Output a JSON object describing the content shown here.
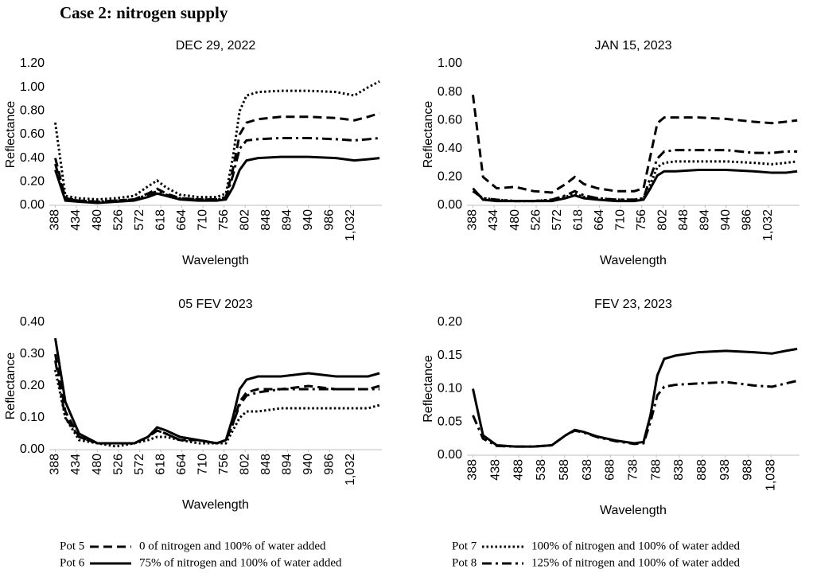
{
  "heading": "Case 2: nitrogen supply",
  "legend": [
    {
      "name": "Pot 5",
      "label": "0 of nitrogen and 100% of water added",
      "dash": "dashed",
      "color": "#000000"
    },
    {
      "name": "Pot 6",
      "label": "75% of nitrogen and 100% of water added",
      "dash": "solid",
      "color": "#000000"
    },
    {
      "name": "Pot 7",
      "label": "100% of nitrogen and 100% of water added",
      "dash": "dotted",
      "color": "#000000"
    },
    {
      "name": "Pot 8",
      "label": "125% of nitrogen and 100% of water added",
      "dash": "dashdot",
      "color": "#000000"
    }
  ],
  "chart_data": [
    {
      "type": "line",
      "title": "DEC 29, 2022",
      "x_label": "Wavelength",
      "y_label": "Reflectance",
      "xlim": [
        375,
        1100
      ],
      "xticks": [
        388,
        434,
        480,
        526,
        572,
        618,
        664,
        710,
        756,
        802,
        848,
        894,
        940,
        986,
        {
          "value": 1032,
          "label": "1,032"
        }
      ],
      "ylim": [
        0,
        1.2
      ],
      "yticks": [
        {
          "value": 0,
          "label": "0.00"
        },
        {
          "value": 0.2,
          "label": "0.20"
        },
        {
          "value": 0.4,
          "label": "0.40"
        },
        {
          "value": 0.6,
          "label": "0.60"
        },
        {
          "value": 0.8,
          "label": "0.80"
        },
        {
          "value": 1,
          "label": "1.00"
        },
        {
          "value": 1.2,
          "label": "1.20"
        }
      ],
      "x": [
        388,
        410,
        440,
        480,
        520,
        560,
        590,
        610,
        630,
        660,
        700,
        740,
        760,
        775,
        790,
        805,
        830,
        880,
        940,
        1000,
        1040,
        1070,
        1095
      ],
      "series": [
        {
          "name": "Pot 5",
          "dash": "dashed",
          "color": "#000000",
          "values": [
            0.4,
            0.06,
            0.04,
            0.03,
            0.04,
            0.05,
            0.1,
            0.14,
            0.1,
            0.06,
            0.05,
            0.05,
            0.07,
            0.3,
            0.6,
            0.7,
            0.73,
            0.75,
            0.75,
            0.74,
            0.72,
            0.75,
            0.78
          ]
        },
        {
          "name": "Pot 6",
          "dash": "solid",
          "color": "#000000",
          "values": [
            0.3,
            0.04,
            0.03,
            0.02,
            0.03,
            0.04,
            0.07,
            0.1,
            0.08,
            0.05,
            0.04,
            0.04,
            0.05,
            0.15,
            0.3,
            0.38,
            0.4,
            0.41,
            0.41,
            0.4,
            0.38,
            0.39,
            0.4
          ]
        },
        {
          "name": "Pot 7",
          "dash": "dotted",
          "color": "#000000",
          "values": [
            0.7,
            0.08,
            0.06,
            0.05,
            0.06,
            0.08,
            0.16,
            0.21,
            0.15,
            0.09,
            0.07,
            0.07,
            0.1,
            0.4,
            0.8,
            0.93,
            0.96,
            0.97,
            0.97,
            0.96,
            0.93,
            1.0,
            1.05
          ]
        },
        {
          "name": "Pot 8",
          "dash": "dashdot",
          "color": "#000000",
          "values": [
            0.35,
            0.05,
            0.04,
            0.03,
            0.04,
            0.05,
            0.09,
            0.12,
            0.09,
            0.06,
            0.05,
            0.05,
            0.06,
            0.25,
            0.48,
            0.55,
            0.56,
            0.57,
            0.57,
            0.56,
            0.55,
            0.56,
            0.57
          ]
        }
      ]
    },
    {
      "type": "line",
      "title": "JAN 15, 2023",
      "x_label": "Wavelength",
      "y_label": "Reflectance",
      "xlim": [
        375,
        1100
      ],
      "xticks": [
        388,
        434,
        480,
        526,
        572,
        618,
        664,
        710,
        756,
        802,
        848,
        894,
        940,
        986,
        {
          "value": 1032,
          "label": "1,032"
        }
      ],
      "ylim": [
        0,
        1
      ],
      "yticks": [
        {
          "value": 0,
          "label": "0.00"
        },
        {
          "value": 0.2,
          "label": "0.20"
        },
        {
          "value": 0.4,
          "label": "0.40"
        },
        {
          "value": 0.6,
          "label": "0.60"
        },
        {
          "value": 0.8,
          "label": "0.80"
        },
        {
          "value": 1,
          "label": "1.00"
        }
      ],
      "x": [
        388,
        410,
        440,
        480,
        520,
        560,
        590,
        610,
        630,
        660,
        700,
        740,
        760,
        775,
        790,
        805,
        830,
        880,
        940,
        1000,
        1040,
        1070,
        1095
      ],
      "series": [
        {
          "name": "Pot 5",
          "dash": "dashed",
          "color": "#000000",
          "values": [
            0.78,
            0.2,
            0.12,
            0.13,
            0.1,
            0.09,
            0.15,
            0.2,
            0.15,
            0.12,
            0.1,
            0.1,
            0.12,
            0.35,
            0.58,
            0.62,
            0.62,
            0.62,
            0.61,
            0.59,
            0.58,
            0.59,
            0.6
          ]
        },
        {
          "name": "Pot 6",
          "dash": "solid",
          "color": "#000000",
          "values": [
            0.12,
            0.04,
            0.03,
            0.03,
            0.03,
            0.03,
            0.05,
            0.07,
            0.05,
            0.04,
            0.03,
            0.03,
            0.04,
            0.12,
            0.21,
            0.24,
            0.24,
            0.25,
            0.25,
            0.24,
            0.23,
            0.23,
            0.24
          ]
        },
        {
          "name": "Pot 7",
          "dash": "dotted",
          "color": "#000000",
          "values": [
            0.1,
            0.05,
            0.04,
            0.03,
            0.03,
            0.04,
            0.06,
            0.08,
            0.06,
            0.05,
            0.04,
            0.04,
            0.05,
            0.15,
            0.27,
            0.3,
            0.31,
            0.31,
            0.31,
            0.3,
            0.29,
            0.3,
            0.31
          ]
        },
        {
          "name": "Pot 8",
          "dash": "dashdot",
          "color": "#000000",
          "values": [
            0.1,
            0.05,
            0.04,
            0.03,
            0.03,
            0.04,
            0.07,
            0.1,
            0.07,
            0.05,
            0.04,
            0.04,
            0.05,
            0.2,
            0.33,
            0.38,
            0.39,
            0.39,
            0.39,
            0.37,
            0.37,
            0.38,
            0.38
          ]
        }
      ]
    },
    {
      "type": "line",
      "title": "05 FEV 2023",
      "x_label": "Wavelength",
      "y_label": "Reflectance",
      "xlim": [
        375,
        1100
      ],
      "xticks": [
        388,
        434,
        480,
        526,
        572,
        618,
        664,
        710,
        756,
        802,
        848,
        894,
        940,
        986,
        {
          "value": 1032,
          "label": "1,032"
        }
      ],
      "ylim": [
        0,
        0.4
      ],
      "yticks": [
        {
          "value": 0,
          "label": "0.00"
        },
        {
          "value": 0.1,
          "label": "0.10"
        },
        {
          "value": 0.2,
          "label": "0.20"
        },
        {
          "value": 0.3,
          "label": "0.30"
        },
        {
          "value": 0.4,
          "label": "0.40"
        }
      ],
      "x": [
        388,
        410,
        440,
        480,
        520,
        560,
        590,
        610,
        630,
        660,
        700,
        740,
        760,
        775,
        790,
        805,
        830,
        880,
        940,
        1000,
        1040,
        1070,
        1095
      ],
      "series": [
        {
          "name": "Pot 5",
          "dash": "dashed",
          "color": "#000000",
          "values": [
            0.3,
            0.12,
            0.04,
            0.02,
            0.02,
            0.02,
            0.04,
            0.06,
            0.05,
            0.03,
            0.03,
            0.02,
            0.03,
            0.08,
            0.15,
            0.18,
            0.19,
            0.19,
            0.2,
            0.19,
            0.19,
            0.19,
            0.2
          ]
        },
        {
          "name": "Pot 6",
          "dash": "solid",
          "color": "#000000",
          "values": [
            0.35,
            0.15,
            0.05,
            0.02,
            0.02,
            0.02,
            0.04,
            0.07,
            0.06,
            0.04,
            0.03,
            0.02,
            0.03,
            0.1,
            0.19,
            0.22,
            0.23,
            0.23,
            0.24,
            0.23,
            0.23,
            0.23,
            0.24
          ]
        },
        {
          "name": "Pot 7",
          "dash": "dotted",
          "color": "#000000",
          "values": [
            0.25,
            0.1,
            0.03,
            0.02,
            0.01,
            0.02,
            0.03,
            0.04,
            0.04,
            0.03,
            0.02,
            0.02,
            0.02,
            0.06,
            0.1,
            0.12,
            0.12,
            0.13,
            0.13,
            0.13,
            0.13,
            0.13,
            0.14
          ]
        },
        {
          "name": "Pot 8",
          "dash": "dashdot",
          "color": "#000000",
          "values": [
            0.28,
            0.1,
            0.04,
            0.02,
            0.02,
            0.02,
            0.04,
            0.06,
            0.05,
            0.03,
            0.03,
            0.02,
            0.03,
            0.08,
            0.14,
            0.17,
            0.18,
            0.19,
            0.19,
            0.19,
            0.19,
            0.19,
            0.19
          ]
        }
      ]
    },
    {
      "type": "line",
      "title": "FEV 23, 2023",
      "x_label": "Wavelength",
      "y_label": "Reflectance",
      "xlim": [
        375,
        1100
      ],
      "xticks": [
        388,
        438,
        488,
        538,
        588,
        638,
        688,
        738,
        788,
        838,
        888,
        938,
        988,
        {
          "value": 1038,
          "label": "1,038"
        }
      ],
      "ylim": [
        0,
        0.2
      ],
      "yticks": [
        {
          "value": 0,
          "label": "0.00"
        },
        {
          "value": 0.05,
          "label": "0.05"
        },
        {
          "value": 0.1,
          "label": "0.10"
        },
        {
          "value": 0.15,
          "label": "0.15"
        },
        {
          "value": 0.2,
          "label": "0.20"
        }
      ],
      "x": [
        388,
        410,
        440,
        480,
        520,
        560,
        590,
        610,
        630,
        660,
        700,
        740,
        760,
        775,
        790,
        805,
        830,
        880,
        940,
        1000,
        1040,
        1070,
        1095
      ],
      "series": [
        {
          "name": "Pot 6",
          "dash": "solid",
          "color": "#000000",
          "values": [
            0.1,
            0.03,
            0.015,
            0.013,
            0.013,
            0.015,
            0.03,
            0.038,
            0.035,
            0.028,
            0.022,
            0.018,
            0.02,
            0.06,
            0.12,
            0.145,
            0.15,
            0.155,
            0.157,
            0.155,
            0.153,
            0.157,
            0.16
          ]
        },
        {
          "name": "Pot 8",
          "dash": "dashdot",
          "color": "#000000",
          "values": [
            0.06,
            0.025,
            0.014,
            0.013,
            0.013,
            0.015,
            0.03,
            0.037,
            0.034,
            0.027,
            0.021,
            0.017,
            0.018,
            0.05,
            0.09,
            0.103,
            0.106,
            0.108,
            0.11,
            0.105,
            0.103,
            0.108,
            0.112
          ]
        }
      ]
    }
  ]
}
